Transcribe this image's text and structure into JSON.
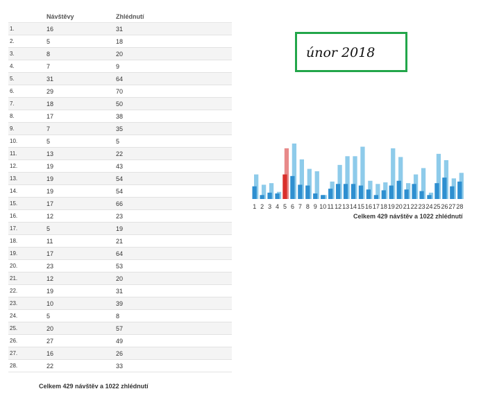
{
  "table": {
    "header_visits": "Návštěvy",
    "header_views": "Zhlédnutí",
    "rows": [
      {
        "day": "1.",
        "visits": "16",
        "views": "31"
      },
      {
        "day": "2.",
        "visits": "5",
        "views": "18"
      },
      {
        "day": "3.",
        "visits": "8",
        "views": "20"
      },
      {
        "day": "4.",
        "visits": "7",
        "views": "9"
      },
      {
        "day": "5.",
        "visits": "31",
        "views": "64"
      },
      {
        "day": "6.",
        "visits": "29",
        "views": "70"
      },
      {
        "day": "7.",
        "visits": "18",
        "views": "50"
      },
      {
        "day": "8.",
        "visits": "17",
        "views": "38"
      },
      {
        "day": "9.",
        "visits": "7",
        "views": "35"
      },
      {
        "day": "10.",
        "visits": "5",
        "views": "5"
      },
      {
        "day": "11.",
        "visits": "13",
        "views": "22"
      },
      {
        "day": "12.",
        "visits": "19",
        "views": "43"
      },
      {
        "day": "13.",
        "visits": "19",
        "views": "54"
      },
      {
        "day": "14.",
        "visits": "19",
        "views": "54"
      },
      {
        "day": "15.",
        "visits": "17",
        "views": "66"
      },
      {
        "day": "16.",
        "visits": "12",
        "views": "23"
      },
      {
        "day": "17.",
        "visits": "5",
        "views": "19"
      },
      {
        "day": "18.",
        "visits": "11",
        "views": "21"
      },
      {
        "day": "19.",
        "visits": "17",
        "views": "64"
      },
      {
        "day": "20.",
        "visits": "23",
        "views": "53"
      },
      {
        "day": "21.",
        "visits": "12",
        "views": "20"
      },
      {
        "day": "22.",
        "visits": "19",
        "views": "31"
      },
      {
        "day": "23.",
        "visits": "10",
        "views": "39"
      },
      {
        "day": "24.",
        "visits": "5",
        "views": "8"
      },
      {
        "day": "25.",
        "visits": "20",
        "views": "57"
      },
      {
        "day": "26.",
        "visits": "27",
        "views": "49"
      },
      {
        "day": "27.",
        "visits": "16",
        "views": "26"
      },
      {
        "day": "28.",
        "visits": "22",
        "views": "33"
      }
    ],
    "total": "Celkem 429 návštěv a 1022 zhlédnutí"
  },
  "month_label": "únor 2018",
  "chart_data": {
    "type": "bar",
    "categories": [
      "1",
      "2",
      "3",
      "4",
      "5",
      "6",
      "7",
      "8",
      "9",
      "10",
      "11",
      "12",
      "13",
      "14",
      "15",
      "16",
      "17",
      "18",
      "19",
      "20",
      "21",
      "22",
      "23",
      "24",
      "25",
      "26",
      "27",
      "28"
    ],
    "series": [
      {
        "values": [
          16,
          5,
          8,
          7,
          31,
          29,
          18,
          17,
          7,
          5,
          13,
          19,
          19,
          19,
          17,
          12,
          5,
          11,
          17,
          23,
          12,
          19,
          10,
          5,
          20,
          27,
          16,
          22
        ]
      },
      {
        "values": [
          31,
          18,
          20,
          9,
          64,
          70,
          50,
          38,
          35,
          5,
          22,
          43,
          54,
          54,
          66,
          23,
          19,
          21,
          64,
          53,
          20,
          31,
          39,
          8,
          57,
          49,
          26,
          33
        ]
      }
    ],
    "highlight_index": 4,
    "colors": {
      "visits": "#2e8fd0",
      "views": "#8ecbea",
      "highlight_visits": "#d9302c",
      "highlight_views": "#e88a8a"
    },
    "total_label": "Celkem 429 návštěv a 1022 zhlédnutí",
    "ylim": [
      0,
      70
    ]
  }
}
